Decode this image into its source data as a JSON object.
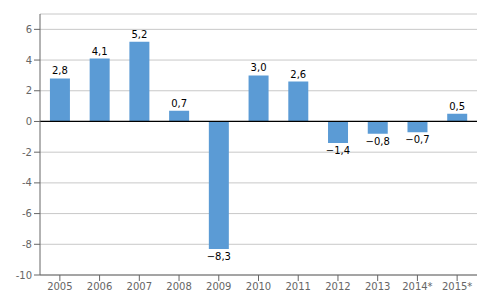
{
  "chart_data": {
    "type": "bar",
    "categories": [
      "2005",
      "2006",
      "2007",
      "2008",
      "2009",
      "2010",
      "2011",
      "2012",
      "2013",
      "2014*",
      "2015*"
    ],
    "values": [
      2.8,
      4.1,
      5.2,
      0.7,
      -8.3,
      3.0,
      2.6,
      -1.4,
      -0.8,
      -0.7,
      0.5
    ],
    "value_labels": [
      "2,8",
      "4,1",
      "5,2",
      "0,7",
      "−8,3",
      "3,0",
      "2,6",
      "−1,4",
      "−0,8",
      "−0,7",
      "0,5"
    ],
    "color": "#5b9bd5",
    "ylim": [
      -10,
      7
    ],
    "yticks": [
      -10,
      -8,
      -6,
      -4,
      -2,
      0,
      2,
      4,
      6
    ],
    "grid": true,
    "data_labels": true
  }
}
